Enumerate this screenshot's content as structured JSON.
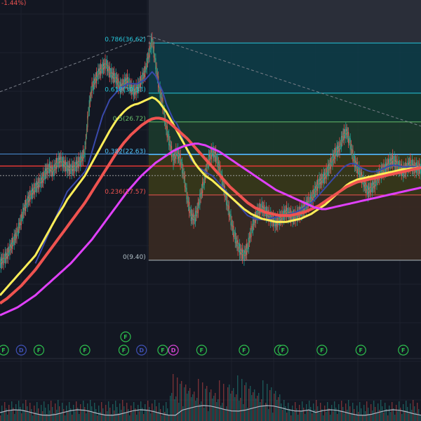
{
  "header": {
    "change_text": "-1.44%)"
  },
  "chart_data": {
    "type": "line",
    "title": "",
    "xlabel": "",
    "ylabel": "",
    "ylim": [
      2,
      42
    ],
    "x_count": 120,
    "grid": true,
    "fib_retracement": {
      "levels": [
        {
          "ratio": "0.786",
          "price": 36.62,
          "label": "0.786(36.62)",
          "color": "#26c6da",
          "fill": "#0e3c47"
        },
        {
          "ratio": "0.618",
          "price": 30.33,
          "label": "0.618(30.33)",
          "color": "#26c6da",
          "fill": "#133a32"
        },
        {
          "ratio": "0.5",
          "price": 26.72,
          "label": "0.5(26.72)",
          "color": "#66bb6a",
          "fill": "#1c3a2c"
        },
        {
          "ratio": "0.382",
          "price": 22.63,
          "label": "0.382(22.63)",
          "color": "#4fc3f7",
          "fill": "#3a3a1a"
        },
        {
          "ratio": "0.236",
          "price": 17.57,
          "label": "0.236(17.57)",
          "color": "#ef5350",
          "fill": "#3a2a22"
        },
        {
          "ratio": "0",
          "price": 9.4,
          "label": "0(9.40)",
          "color": "#b0bec5",
          "fill": "#301c26"
        }
      ],
      "line_color": "#80868f"
    },
    "horizontal_lines": [
      {
        "price": 22.7,
        "color": "#4a90d9"
      },
      {
        "price": 21.2,
        "color": "#e53935"
      },
      {
        "price": 20.0,
        "color": "#9e9e9e"
      }
    ],
    "series": [
      {
        "values": [
          9,
          9.5,
          10,
          11,
          12,
          13,
          14.5,
          16,
          17,
          17.8,
          18.5,
          19,
          19.5,
          20.5,
          21,
          20.5,
          21.5,
          22,
          21.5,
          21,
          20.8,
          21,
          21.5,
          22,
          23,
          28,
          31,
          32,
          33,
          33.5,
          34,
          33,
          32.5,
          32,
          31,
          31.5,
          32,
          31,
          30.5,
          31,
          32,
          33,
          35,
          37,
          34,
          31,
          29,
          26,
          24,
          22,
          23,
          22,
          20,
          17,
          15,
          14.5,
          16,
          18,
          20,
          22,
          23,
          22.5,
          21,
          19,
          17,
          15,
          13,
          11.5,
          10.5,
          10,
          11,
          13,
          14.5,
          15.5,
          16,
          15.5,
          15,
          14.5,
          14,
          14.5,
          15,
          15.5,
          15,
          14.8,
          15,
          15.5,
          16,
          16.5,
          17,
          18,
          19,
          19.5,
          20,
          21,
          22,
          23,
          23.5,
          25,
          25.5,
          24,
          22,
          21,
          20,
          19,
          18,
          18.5,
          19,
          20,
          20.5,
          21,
          21.5,
          22,
          21.5,
          21,
          20.5,
          21,
          21.5,
          21,
          21,
          20.8,
          21,
          21.2
        ],
        "color": "#5d7a56",
        "width": 1.2
      },
      {
        "values": [
          null,
          null,
          null,
          null,
          null,
          null,
          null,
          null,
          null,
          null,
          9,
          10,
          11,
          12,
          13,
          14,
          15,
          16,
          17,
          18,
          18.5,
          19,
          19.5,
          20,
          20.5,
          21.5,
          23,
          24.5,
          26,
          27.5,
          28.5,
          29.5,
          30,
          30.5,
          31,
          31.2,
          31.5,
          31.5,
          31.5,
          31.5,
          31.8,
          32,
          32.5,
          33,
          32.5,
          31.5,
          30.5,
          29,
          28,
          27,
          26.5,
          25.5,
          24,
          23,
          22,
          21.5,
          21,
          20.8,
          20.5,
          20.2,
          20,
          19.5,
          19,
          18.5,
          18,
          17.5,
          17,
          16.5,
          16,
          15.5,
          15,
          14.8,
          14.6,
          14.5,
          14.5,
          14.5,
          14.6,
          14.7,
          14.8,
          14.9,
          15,
          15.1,
          15.2,
          15.3,
          15.5,
          15.7,
          16,
          16.3,
          16.6,
          17,
          17.5,
          18,
          18.5,
          19,
          19.5,
          20,
          20.5,
          21,
          21.3,
          21.5,
          21.5,
          21.3,
          21,
          20.8,
          20.6,
          20.5,
          20.5,
          20.6,
          20.8,
          21,
          21.2,
          21.3,
          21.3,
          21.2,
          21.1,
          21.1,
          21.1,
          21.1,
          21.1,
          21.1
        ],
        "color": "#3949ab",
        "width": 2
      },
      {
        "values": [
          5,
          5.5,
          6,
          6.5,
          7,
          7.5,
          8,
          8.5,
          9,
          9.5,
          10,
          10.8,
          11.6,
          12.4,
          13.2,
          14,
          14.8,
          15.5,
          16.2,
          17,
          17.6,
          18.2,
          18.8,
          19.4,
          20,
          20.8,
          21.6,
          22.4,
          23.2,
          24,
          24.8,
          25.6,
          26.3,
          27,
          27.5,
          28,
          28.4,
          28.7,
          28.9,
          29,
          29.2,
          29.4,
          29.6,
          29.8,
          29.6,
          29.2,
          28.6,
          28,
          27.2,
          26.4,
          25.6,
          24.8,
          24,
          23.2,
          22.4,
          21.6,
          21,
          20.5,
          20,
          19.7,
          19.4,
          19,
          18.6,
          18.2,
          17.8,
          17.4,
          17,
          16.6,
          16.2,
          15.8,
          15.5,
          15.2,
          15,
          14.8,
          14.6,
          14.5,
          14.4,
          14.3,
          14.2,
          14.2,
          14.2,
          14.2,
          14.3,
          14.4,
          14.5,
          14.6,
          14.8,
          15,
          15.2,
          15.5,
          15.8,
          16.1,
          16.4,
          16.8,
          17.2,
          17.6,
          18,
          18.4,
          18.8,
          19.1,
          19.3,
          19.5,
          19.6,
          19.7,
          19.8,
          19.9,
          20,
          20.1,
          20.2,
          20.3,
          20.4,
          20.5,
          20.6,
          20.7,
          20.8,
          20.8,
          20.9,
          20.9,
          21,
          21
        ],
        "color": "#ffee58",
        "width": 3
      },
      {
        "values": [
          4,
          4.3,
          4.6,
          5,
          5.4,
          5.8,
          6.2,
          6.7,
          7.2,
          7.7,
          8.2,
          8.8,
          9.4,
          10,
          10.6,
          11.2,
          11.8,
          12.4,
          13,
          13.6,
          14.2,
          14.8,
          15.4,
          16,
          16.6,
          17.3,
          18,
          18.7,
          19.4,
          20.1,
          20.8,
          21.5,
          22.2,
          22.9,
          23.5,
          24.1,
          24.6,
          25.1,
          25.5,
          25.9,
          26.3,
          26.6,
          26.9,
          27.1,
          27.2,
          27.2,
          27.1,
          26.9,
          26.6,
          26.2,
          25.8,
          25.4,
          25,
          24.6,
          24.1,
          23.6,
          23.1,
          22.6,
          22.1,
          21.6,
          21.1,
          20.6,
          20.1,
          19.6,
          19.1,
          18.6,
          18.2,
          17.8,
          17.4,
          17,
          16.6,
          16.3,
          16,
          15.8,
          15.6,
          15.4,
          15.3,
          15.2,
          15.1,
          15,
          15,
          15,
          15,
          15.1,
          15.2,
          15.3,
          15.4,
          15.6,
          15.8,
          16,
          16.2,
          16.5,
          16.8,
          17.1,
          17.4,
          17.7,
          18,
          18.3,
          18.6,
          18.8,
          19,
          19.2,
          19.3,
          19.4,
          19.5,
          19.6,
          19.7,
          19.8,
          19.9,
          20,
          20.1,
          20.2,
          20.3,
          20.4,
          20.5,
          20.6,
          20.7,
          20.8,
          20.9,
          21
        ],
        "color": "#ef5350",
        "width": 4
      },
      {
        "values": [
          2.5,
          2.7,
          2.9,
          3.1,
          3.3,
          3.5,
          3.8,
          4.1,
          4.4,
          4.7,
          5,
          5.4,
          5.8,
          6.2,
          6.6,
          7,
          7.4,
          7.8,
          8.2,
          8.6,
          9,
          9.5,
          10,
          10.5,
          11,
          11.5,
          12,
          12.6,
          13.2,
          13.8,
          14.4,
          15,
          15.6,
          16.2,
          16.8,
          17.4,
          18,
          18.5,
          19,
          19.5,
          20,
          20.4,
          20.8,
          21.2,
          21.6,
          21.9,
          22.2,
          22.5,
          22.8,
          23.1,
          23.3,
          23.5,
          23.7,
          23.8,
          23.9,
          24,
          24,
          23.9,
          23.8,
          23.6,
          23.4,
          23.2,
          23,
          22.7,
          22.4,
          22.1,
          21.8,
          21.5,
          21.2,
          20.9,
          20.6,
          20.3,
          20,
          19.7,
          19.4,
          19.1,
          18.8,
          18.5,
          18.2,
          18,
          17.8,
          17.6,
          17.4,
          17.2,
          17,
          16.8,
          16.6,
          16.4,
          16.2,
          16,
          15.9,
          15.8,
          15.8,
          15.9,
          16,
          16.1,
          16.2,
          16.3,
          16.4,
          16.5,
          16.6,
          16.7,
          16.8,
          16.9,
          17,
          17.1,
          17.2,
          17.3,
          17.4,
          17.5,
          17.6,
          17.7,
          17.8,
          17.9,
          18,
          18.1,
          18.2,
          18.3,
          18.4,
          18.5
        ],
        "color": "#e040fb",
        "width": 3
      }
    ],
    "trend_lines": [
      {
        "from": [
          0,
          30.5
        ],
        "to": [
          42,
          37.5
        ],
        "color": "#7a7f89"
      },
      {
        "from": [
          42,
          37.5
        ],
        "to": [
          119,
          26.2
        ],
        "color": "#7a7f89"
      }
    ],
    "event_markers": [
      {
        "x": 1,
        "letter": "F",
        "color": "#2dbe4d"
      },
      {
        "x": 6,
        "letter": "D",
        "color": "#3f51b5"
      },
      {
        "x": 11,
        "letter": "F",
        "color": "#2dbe4d"
      },
      {
        "x": 24,
        "letter": "F",
        "color": "#2dbe4d"
      },
      {
        "x": 35,
        "letter": "F",
        "color": "#2dbe4d"
      },
      {
        "x": 35.5,
        "letter": "F",
        "color": "#2dbe4d",
        "row": 1
      },
      {
        "x": 40,
        "letter": "D",
        "color": "#3f51b5"
      },
      {
        "x": 46,
        "letter": "F",
        "color": "#2dbe4d"
      },
      {
        "x": 49,
        "letter": "D",
        "color": "#d545d5"
      },
      {
        "x": 57,
        "letter": "F",
        "color": "#2dbe4d"
      },
      {
        "x": 69,
        "letter": "F",
        "color": "#2dbe4d"
      },
      {
        "x": 79,
        "letter": "F",
        "color": "#2dbe4d"
      },
      {
        "x": 80,
        "letter": "F",
        "color": "#2dbe4d"
      },
      {
        "x": 91,
        "letter": "F",
        "color": "#2dbe4d"
      },
      {
        "x": 102,
        "letter": "F",
        "color": "#2dbe4d"
      },
      {
        "x": 114,
        "letter": "F",
        "color": "#2dbe4d"
      }
    ]
  }
}
